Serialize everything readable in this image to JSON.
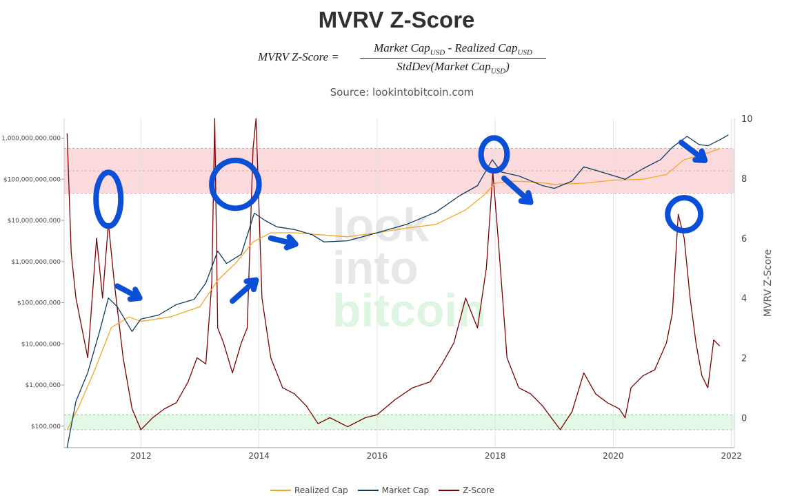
{
  "title": "MVRV Z-Score",
  "formula": {
    "lhs": "MVRV Z-Score  =",
    "numerator_a": "Market Cap",
    "numerator_b": " - Realized Cap",
    "denominator_a": "StdDev(Market Cap",
    "denominator_b": ")",
    "subscript": "USD"
  },
  "source": "Source: lookintobitcoin.com",
  "watermark": [
    "look",
    "into",
    "bitcoin"
  ],
  "colors": {
    "realized": "#f5a623",
    "market": "#0d3b5e",
    "zscore": "#7b0000",
    "red_band": "#fadadd",
    "green_band": "#e3f8e6",
    "annotation": "#0a4fd6"
  },
  "legend": [
    {
      "label": "Realized Cap",
      "color": "#f5a623"
    },
    {
      "label": "Market Cap",
      "color": "#0d3b5e"
    },
    {
      "label": "Z-Score",
      "color": "#7b0000"
    }
  ],
  "chart_data": {
    "type": "line",
    "xlabel": "",
    "ylabel_left": "",
    "ylabel_right": "MVRV Z-Score",
    "x_ticks": [
      "2012",
      "2014",
      "2016",
      "2018",
      "2020",
      "2022"
    ],
    "y_left_scale": "log",
    "y_left_ticks": [
      "$100,000",
      "$1,000,000",
      "$10,000,000",
      "$100,000,000",
      "$1,000,000,000",
      "$10,000,000,000",
      "$100,000,000,000",
      "1,000,000,000,000"
    ],
    "y_left_range": [
      30000,
      3000000000000
    ],
    "y_right_ticks": [
      "0",
      "2",
      "4",
      "6",
      "8",
      "10"
    ],
    "y_right_range": [
      -1,
      10
    ],
    "red_band_z": [
      7.5,
      9
    ],
    "green_band_z": [
      -0.4,
      0.1
    ],
    "series": [
      {
        "name": "Realized Cap",
        "x": [
          2010.75,
          2010.95,
          2011.2,
          2011.5,
          2011.8,
          2012.0,
          2012.5,
          2013.0,
          2013.3,
          2013.6,
          2013.9,
          2014.2,
          2014.6,
          2015.0,
          2015.5,
          2016.0,
          2016.5,
          2017.0,
          2017.5,
          2017.8,
          2018.0,
          2018.3,
          2018.7,
          2019.0,
          2019.5,
          2020.0,
          2020.5,
          2020.9,
          2021.2,
          2021.5,
          2021.8
        ],
        "values": [
          80000,
          300000,
          2000000,
          25000000,
          45000000,
          35000000,
          45000000,
          80000000,
          350000000,
          900000000,
          3000000000,
          5000000000,
          5000000000,
          4500000000,
          4000000000,
          5000000000,
          6500000000,
          8000000000,
          18000000000,
          40000000000,
          80000000000,
          90000000000,
          85000000000,
          75000000000,
          80000000000,
          95000000000,
          100000000000,
          130000000000,
          300000000000,
          390000000000,
          550000000000
        ]
      },
      {
        "name": "Market Cap",
        "x": [
          2010.75,
          2010.9,
          2011.1,
          2011.3,
          2011.45,
          2011.6,
          2011.85,
          2012.0,
          2012.3,
          2012.6,
          2012.9,
          2013.1,
          2013.3,
          2013.45,
          2013.7,
          2013.92,
          2014.1,
          2014.3,
          2014.6,
          2014.9,
          2015.1,
          2015.5,
          2016.0,
          2016.5,
          2017.0,
          2017.4,
          2017.7,
          2017.95,
          2018.1,
          2018.4,
          2018.8,
          2019.0,
          2019.3,
          2019.5,
          2019.8,
          2020.2,
          2020.5,
          2020.8,
          2021.0,
          2021.25,
          2021.45,
          2021.6,
          2021.8,
          2021.95
        ],
        "values": [
          30000,
          400000,
          2000000,
          20000000,
          130000000,
          80000000,
          20000000,
          40000000,
          50000000,
          90000000,
          120000000,
          300000000,
          1800000000,
          900000000,
          1500000000,
          15000000000,
          10000000000,
          7000000000,
          6000000000,
          4500000000,
          3000000000,
          3200000000,
          5000000000,
          8000000000,
          16000000000,
          40000000000,
          70000000000,
          300000000000,
          150000000000,
          120000000000,
          70000000000,
          60000000000,
          90000000000,
          200000000000,
          150000000000,
          100000000000,
          180000000000,
          300000000000,
          600000000000,
          1100000000000,
          700000000000,
          650000000000,
          900000000000,
          1200000000000
        ]
      },
      {
        "name": "Z-Score",
        "x": [
          2010.75,
          2010.82,
          2010.9,
          2011.0,
          2011.1,
          2011.25,
          2011.35,
          2011.45,
          2011.55,
          2011.7,
          2011.85,
          2012.0,
          2012.2,
          2012.4,
          2012.6,
          2012.8,
          2012.95,
          2013.1,
          2013.2,
          2013.25,
          2013.3,
          2013.4,
          2013.55,
          2013.7,
          2013.8,
          2013.9,
          2013.95,
          2014.05,
          2014.2,
          2014.4,
          2014.6,
          2014.8,
          2015.0,
          2015.2,
          2015.5,
          2015.8,
          2016.0,
          2016.3,
          2016.6,
          2016.9,
          2017.1,
          2017.3,
          2017.5,
          2017.7,
          2017.85,
          2017.96,
          2018.05,
          2018.2,
          2018.4,
          2018.6,
          2018.8,
          2018.95,
          2019.1,
          2019.3,
          2019.5,
          2019.7,
          2019.9,
          2020.1,
          2020.2,
          2020.3,
          2020.5,
          2020.7,
          2020.9,
          2021.0,
          2021.1,
          2021.2,
          2021.3,
          2021.4,
          2021.5,
          2021.6,
          2021.7,
          2021.8
        ],
        "values": [
          9.5,
          5.5,
          4.0,
          3.0,
          2.0,
          6.0,
          4.0,
          6.5,
          4.5,
          2.0,
          0.3,
          -0.4,
          0.0,
          0.3,
          0.5,
          1.2,
          2.0,
          1.8,
          4.5,
          10.0,
          3.0,
          2.5,
          1.5,
          2.5,
          3.0,
          9.0,
          10.0,
          4.0,
          2.0,
          1.0,
          0.8,
          0.4,
          -0.2,
          0.0,
          -0.3,
          0.0,
          0.1,
          0.6,
          1.0,
          1.2,
          1.8,
          2.5,
          4.0,
          3.0,
          5.0,
          8.2,
          6.0,
          2.0,
          1.0,
          0.8,
          0.4,
          0.0,
          -0.4,
          0.2,
          1.5,
          0.8,
          0.5,
          0.3,
          0.0,
          1.0,
          1.4,
          1.6,
          2.5,
          3.5,
          6.8,
          6.0,
          4.0,
          2.5,
          1.4,
          1.0,
          2.6,
          2.4
        ]
      }
    ]
  },
  "annotations": {
    "circles": [
      {
        "x": 2011.45,
        "z": 7.3,
        "rx": 0.21,
        "rz": 0.9
      },
      {
        "x": 2013.6,
        "z": 7.8,
        "rx": 0.4,
        "rz": 0.8
      },
      {
        "x": 2017.98,
        "z": 8.8,
        "rx": 0.22,
        "rz": 0.55
      },
      {
        "x": 2021.2,
        "z": 6.8,
        "rx": 0.28,
        "rz": 0.55
      }
    ],
    "arrows": [
      {
        "from": [
          2011.6,
          4.4
        ],
        "to": [
          2011.98,
          4.0
        ]
      },
      {
        "from": [
          2013.55,
          3.9
        ],
        "to": [
          2013.95,
          4.6
        ]
      },
      {
        "from": [
          2014.2,
          6.0
        ],
        "to": [
          2014.62,
          5.8
        ]
      },
      {
        "from": [
          2018.15,
          8.0
        ],
        "to": [
          2018.6,
          7.2
        ]
      },
      {
        "from": [
          2021.15,
          9.2
        ],
        "to": [
          2021.55,
          8.6
        ]
      }
    ]
  }
}
